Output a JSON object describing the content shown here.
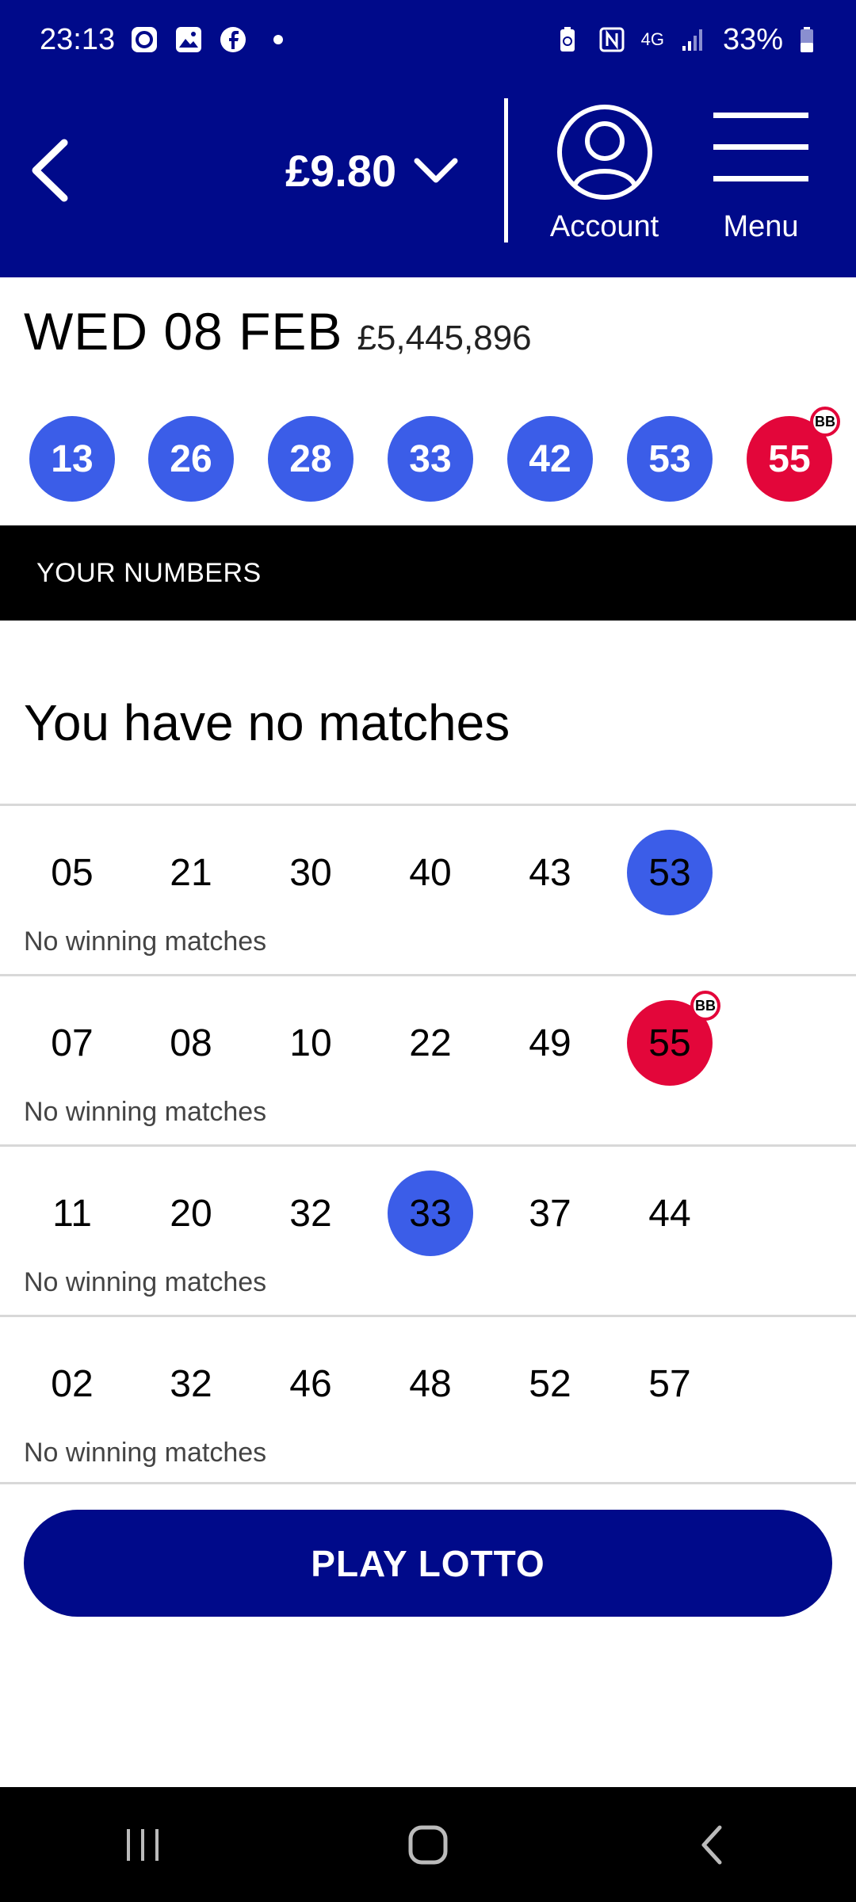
{
  "status_bar": {
    "time": "23:13",
    "battery": "33%",
    "network": "4G"
  },
  "header": {
    "balance": "£9.80",
    "account_label": "Account",
    "menu_label": "Menu"
  },
  "draw": {
    "date": "WED 08 FEB",
    "jackpot": "£5,445,896",
    "main_balls": [
      "13",
      "26",
      "28",
      "33",
      "42",
      "53"
    ],
    "bonus_ball": "55",
    "bonus_badge": "BB"
  },
  "section_title": "YOUR NUMBERS",
  "result_title": "You have no matches",
  "lines": [
    {
      "numbers": [
        "05",
        "21",
        "30",
        "40",
        "43",
        "53"
      ],
      "status": "No winning matches"
    },
    {
      "numbers": [
        "07",
        "08",
        "10",
        "22",
        "49",
        "55"
      ],
      "status": "No winning matches"
    },
    {
      "numbers": [
        "11",
        "20",
        "32",
        "33",
        "37",
        "44"
      ],
      "status": "No winning matches"
    },
    {
      "numbers": [
        "02",
        "32",
        "46",
        "48",
        "52",
        "57"
      ],
      "status": "No winning matches"
    }
  ],
  "play_button": "PLAY LOTTO",
  "colors": {
    "brand_navy": "#000a8a",
    "ball_blue": "#3b5de8",
    "ball_red": "#e3063a"
  }
}
